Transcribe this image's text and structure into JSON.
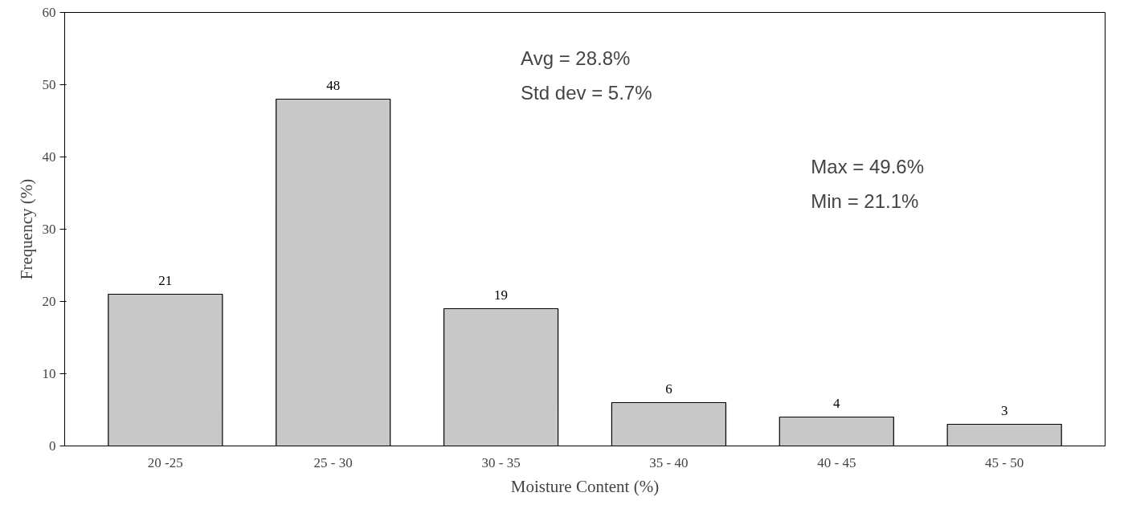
{
  "chart_data": {
    "type": "bar",
    "xlabel": "Moisture Content (%)",
    "ylabel": "Frequency (%)",
    "categories": [
      "20 -25",
      "25 - 30",
      "30 - 35",
      "35 - 40",
      "40 - 45",
      "45 - 50"
    ],
    "values": [
      21,
      48,
      19,
      6,
      4,
      3
    ],
    "color": "#c8c8c8",
    "ylim": [
      0,
      60
    ],
    "yticks": [
      0,
      10,
      20,
      30,
      40,
      50,
      60
    ],
    "data_labels": true,
    "grid": false,
    "annotations": [
      "Avg = 28.8%",
      "Std dev = 5.7%",
      "Max = 49.6%",
      "Min = 21.1%"
    ]
  }
}
